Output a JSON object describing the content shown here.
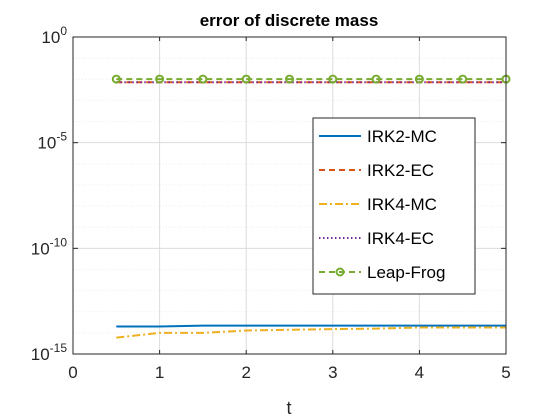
{
  "chart_data": {
    "type": "line",
    "title": "error of discrete mass",
    "xlabel": "t",
    "ylabel": "",
    "xlim": [
      0,
      5
    ],
    "ylim_log10": [
      -15,
      0
    ],
    "yscale": "log",
    "grid": true,
    "legend_position": "right",
    "x_ticks": [
      "0",
      "1",
      "2",
      "3",
      "4",
      "5"
    ],
    "y_ticks": [
      {
        "base": "10",
        "exp": "0",
        "log10": 0
      },
      {
        "base": "10",
        "exp": "-5",
        "log10": -5
      },
      {
        "base": "10",
        "exp": "-10",
        "log10": -10
      },
      {
        "base": "10",
        "exp": "-15",
        "log10": -15
      }
    ],
    "x": [
      0.5,
      1.0,
      1.5,
      2.0,
      2.5,
      3.0,
      3.5,
      4.0,
      4.5,
      5.0
    ],
    "series": [
      {
        "name": "IRK2-MC",
        "color": "#0072BD",
        "style": "solid",
        "values": [
          2e-14,
          2e-14,
          2.2e-14,
          2.2e-14,
          2.2e-14,
          2.2e-14,
          2.2e-14,
          2.2e-14,
          2.2e-14,
          2.2e-14
        ]
      },
      {
        "name": "IRK2-EC",
        "color": "#D95319",
        "style": "dashed",
        "values": [
          0.0072,
          0.0072,
          0.0072,
          0.0072,
          0.0072,
          0.0072,
          0.0072,
          0.0072,
          0.0072,
          0.0072
        ]
      },
      {
        "name": "IRK4-MC",
        "color": "#EDB120",
        "style": "dashdot",
        "values": [
          6e-15,
          1e-14,
          1e-14,
          1.3e-14,
          1.4e-14,
          1.5e-14,
          1.6e-14,
          1.8e-14,
          1.8e-14,
          1.8e-14
        ]
      },
      {
        "name": "IRK4-EC",
        "color": "#7E2F8E",
        "style": "dotted",
        "values": [
          0.0072,
          0.0072,
          0.0072,
          0.0072,
          0.0072,
          0.0072,
          0.0072,
          0.0072,
          0.0072,
          0.0072
        ]
      },
      {
        "name": "Leap-Frog",
        "color": "#77AC30",
        "style": "dashed",
        "marker": "circle",
        "values": [
          0.0102,
          0.0102,
          0.0102,
          0.0102,
          0.0102,
          0.0102,
          0.0102,
          0.0102,
          0.0102,
          0.0102
        ]
      }
    ]
  }
}
